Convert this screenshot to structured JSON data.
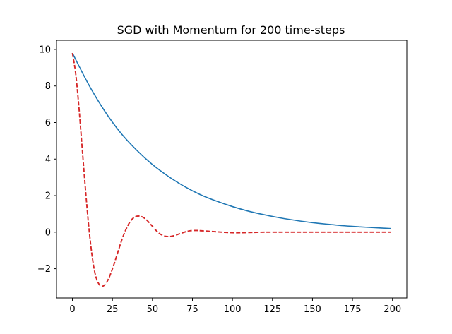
{
  "chart_data": {
    "type": "line",
    "title": "SGD with Momentum for 200 time-steps",
    "xlabel": "",
    "ylabel": "",
    "xlim": [
      -9.95,
      208.95
    ],
    "ylim": [
      -3.6,
      10.5
    ],
    "xticks": [
      0,
      25,
      50,
      75,
      100,
      125,
      150,
      175,
      200
    ],
    "xtick_labels": [
      "0",
      "25",
      "50",
      "75",
      "100",
      "125",
      "150",
      "175",
      "200"
    ],
    "yticks": [
      -2,
      0,
      2,
      4,
      6,
      8,
      10
    ],
    "ytick_labels": [
      "−2",
      "0",
      "2",
      "4",
      "6",
      "8",
      "10"
    ],
    "grid": false,
    "legend": null,
    "series": [
      {
        "color": "#1f77b4",
        "dash": "solid",
        "x": [
          0,
          10,
          20,
          30,
          40,
          50,
          60,
          70,
          80,
          90,
          100,
          110,
          120,
          130,
          140,
          150,
          160,
          170,
          180,
          190,
          199
        ],
        "y": [
          9.8,
          8.1,
          6.65,
          5.45,
          4.5,
          3.7,
          3.05,
          2.5,
          2.05,
          1.7,
          1.4,
          1.15,
          0.95,
          0.78,
          0.64,
          0.52,
          0.43,
          0.35,
          0.29,
          0.24,
          0.2
        ]
      },
      {
        "color": "#d62728",
        "dash": "dashed",
        "x": [
          0,
          2,
          4,
          6,
          8,
          10,
          12,
          14,
          16,
          18,
          20,
          22,
          24,
          26,
          28,
          30,
          32,
          34,
          36,
          38,
          40,
          42,
          44,
          46,
          48,
          50,
          52,
          54,
          56,
          58,
          60,
          62,
          64,
          66,
          68,
          70,
          72,
          74,
          76,
          78,
          80,
          85,
          90,
          95,
          100,
          105,
          110,
          115,
          120,
          130,
          140,
          150,
          160,
          170,
          180,
          190,
          199
        ],
        "y": [
          9.8,
          8.7,
          6.9,
          4.7,
          2.5,
          0.5,
          -1.1,
          -2.2,
          -2.75,
          -2.95,
          -2.9,
          -2.65,
          -2.25,
          -1.75,
          -1.2,
          -0.65,
          -0.15,
          0.25,
          0.57,
          0.77,
          0.87,
          0.88,
          0.82,
          0.7,
          0.52,
          0.32,
          0.12,
          -0.05,
          -0.16,
          -0.22,
          -0.24,
          -0.22,
          -0.18,
          -0.12,
          -0.06,
          0.0,
          0.05,
          0.08,
          0.09,
          0.09,
          0.08,
          0.05,
          0.02,
          -0.01,
          -0.03,
          -0.03,
          -0.02,
          -0.01,
          0.0,
          0.0,
          0.0,
          0.0,
          0.0,
          0.0,
          0.0,
          0.0,
          0.0
        ]
      }
    ]
  }
}
